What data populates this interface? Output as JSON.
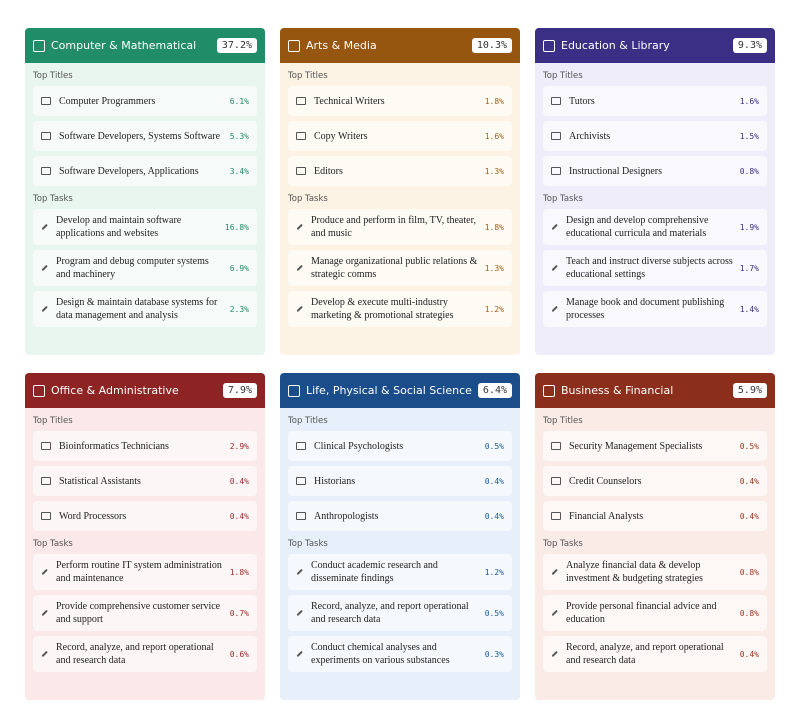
{
  "labels": {
    "top_titles": "Top Titles",
    "top_tasks": "Top Tasks"
  },
  "cards": [
    {
      "title": "Computer & Mathematical",
      "share": "37.2%",
      "titles": [
        {
          "name": "Computer Programmers",
          "pct": "6.1%"
        },
        {
          "name": "Software Developers, Systems Software",
          "pct": "5.3%"
        },
        {
          "name": "Software Developers, Applications",
          "pct": "3.4%"
        }
      ],
      "tasks": [
        {
          "name": "Develop and maintain software applications and websites",
          "pct": "16.8%"
        },
        {
          "name": "Program and debug computer systems and machinery",
          "pct": "6.9%"
        },
        {
          "name": "Design & maintain database systems for data management and analysis",
          "pct": "2.3%"
        }
      ]
    },
    {
      "title": "Arts & Media",
      "share": "10.3%",
      "titles": [
        {
          "name": "Technical Writers",
          "pct": "1.8%"
        },
        {
          "name": "Copy Writers",
          "pct": "1.6%"
        },
        {
          "name": "Editors",
          "pct": "1.3%"
        }
      ],
      "tasks": [
        {
          "name": "Produce and perform in film, TV, theater, and music",
          "pct": "1.8%"
        },
        {
          "name": "Manage organizational public relations & strategic comms",
          "pct": "1.3%"
        },
        {
          "name": "Develop & execute multi-industry marketing & promotional strategies",
          "pct": "1.2%"
        }
      ]
    },
    {
      "title": "Education & Library",
      "share": "9.3%",
      "titles": [
        {
          "name": "Tutors",
          "pct": "1.6%"
        },
        {
          "name": "Archivists",
          "pct": "1.5%"
        },
        {
          "name": "Instructional Designers",
          "pct": "0.8%"
        }
      ],
      "tasks": [
        {
          "name": "Design and develop comprehensive educational curricula and materials",
          "pct": "1.9%"
        },
        {
          "name": "Teach and instruct diverse subjects across educational settings",
          "pct": "1.7%"
        },
        {
          "name": "Manage book and document publishing processes",
          "pct": "1.4%"
        }
      ]
    },
    {
      "title": "Office & Administrative",
      "share": "7.9%",
      "titles": [
        {
          "name": "Bioinformatics Technicians",
          "pct": "2.9%"
        },
        {
          "name": "Statistical Assistants",
          "pct": "0.4%"
        },
        {
          "name": "Word Processors",
          "pct": "0.4%"
        }
      ],
      "tasks": [
        {
          "name": "Perform routine IT system administration and maintenance",
          "pct": "1.8%"
        },
        {
          "name": "Provide comprehensive customer service and support",
          "pct": "0.7%"
        },
        {
          "name": "Record, analyze, and report operational and research data",
          "pct": "0.6%"
        }
      ]
    },
    {
      "title": "Life, Physical & Social Science",
      "share": "6.4%",
      "titles": [
        {
          "name": "Clinical Psychologists",
          "pct": "0.5%"
        },
        {
          "name": "Historians",
          "pct": "0.4%"
        },
        {
          "name": "Anthropologists",
          "pct": "0.4%"
        }
      ],
      "tasks": [
        {
          "name": "Conduct academic research and disseminate findings",
          "pct": "1.2%"
        },
        {
          "name": "Record, analyze, and report operational and research data",
          "pct": "0.5%"
        },
        {
          "name": "Conduct chemical analyses and experiments on various substances",
          "pct": "0.3%"
        }
      ]
    },
    {
      "title": "Business & Financial",
      "share": "5.9%",
      "titles": [
        {
          "name": "Security Management Specialists",
          "pct": "0.5%"
        },
        {
          "name": "Credit Counselors",
          "pct": "0.4%"
        },
        {
          "name": "Financial Analysts",
          "pct": "0.4%"
        }
      ],
      "tasks": [
        {
          "name": "Analyze financial data & develop investment & budgeting strategies",
          "pct": "0.8%"
        },
        {
          "name": "Provide personal financial advice and education",
          "pct": "0.8%"
        },
        {
          "name": "Record, analyze, and report operational and research data",
          "pct": "0.4%"
        }
      ]
    }
  ]
}
